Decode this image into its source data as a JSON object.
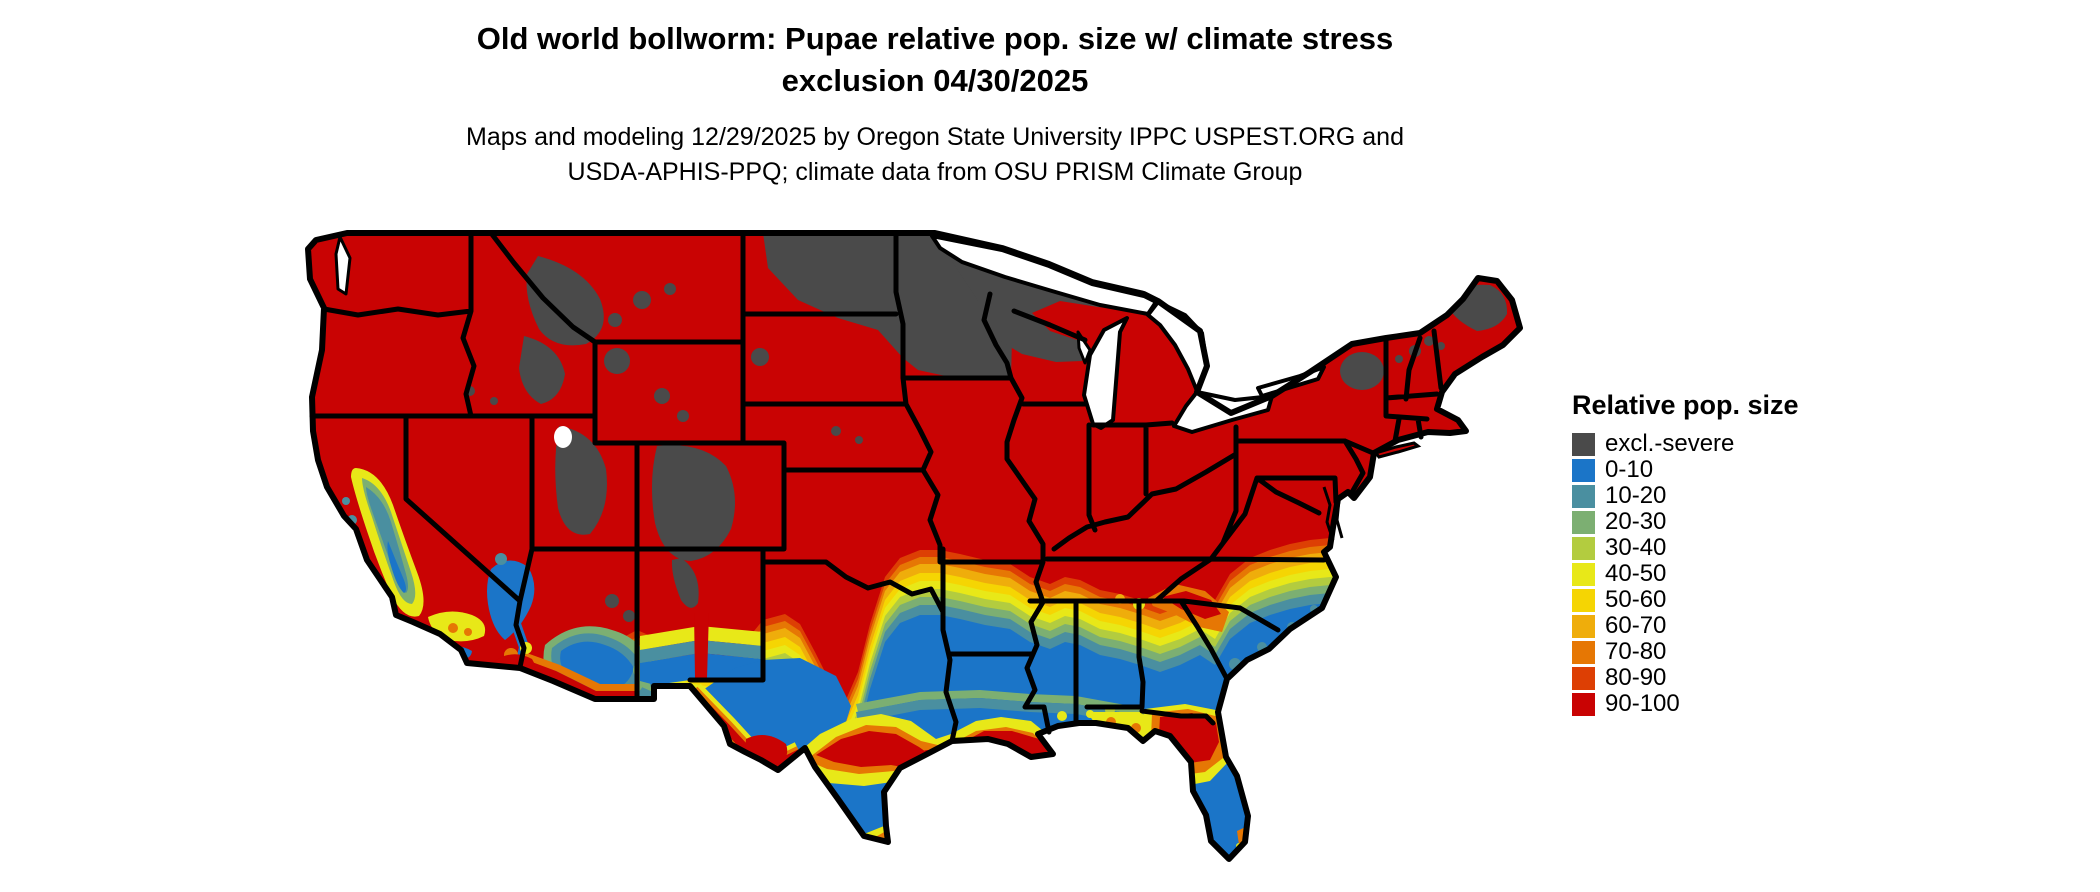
{
  "figure": {
    "title_line1": "Old world bollworm: Pupae relative pop. size w/ climate stress",
    "title_line2": "exclusion 04/30/2025",
    "subtitle_line1": "Maps and modeling 12/29/2025 by Oregon State University IPPC USPEST.ORG and",
    "subtitle_line2": "USDA-APHIS-PPQ; climate data from OSU PRISM Climate Group"
  },
  "legend": {
    "title": "Relative pop. size",
    "items": [
      {
        "label": "excl.-severe",
        "color": "#4A4A4A"
      },
      {
        "label": "0-10",
        "color": "#1B75C8"
      },
      {
        "label": "10-20",
        "color": "#4A8FA0"
      },
      {
        "label": "20-30",
        "color": "#7CAF72"
      },
      {
        "label": "30-40",
        "color": "#B3CC3F"
      },
      {
        "label": "40-50",
        "color": "#E8E818"
      },
      {
        "label": "50-60",
        "color": "#F5D503"
      },
      {
        "label": "60-70",
        "color": "#EFAD0B"
      },
      {
        "label": "70-80",
        "color": "#E67704"
      },
      {
        "label": "80-90",
        "color": "#DD3F04"
      },
      {
        "label": "90-100",
        "color": "#C90303"
      }
    ]
  },
  "map": {
    "region": "Contiguous United States",
    "variable": "Relative pop. size",
    "pattern_summary": "Northern tier (ND, MN, WI, MI-UP, Rockies, N. New England) excluded-severe gray; most of the north and west 90-100 red; west-to-east orange/yellow/green/teal transition band through OK-MO-KY-VA; Deep South and coastal Southeast 0-10 blue; secondary warm (red/orange) band along Gulf Coast of TX-LA and north Florida; mixed mosaic in CA Central Valley, S. Nevada, Arizona and S. New Mexico"
  }
}
